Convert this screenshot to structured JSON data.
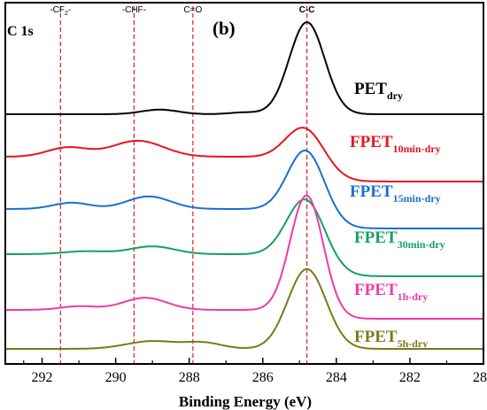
{
  "chart_data": {
    "type": "line",
    "title": "",
    "panel_label": "(b)",
    "region_label": "C 1s",
    "xlabel": "Binding Energy (eV)",
    "ylabel": "",
    "xlim": [
      293,
      280
    ],
    "x_reversed": true,
    "x_ticks": [
      292,
      290,
      288,
      286,
      284,
      282,
      280
    ],
    "grid": false,
    "legend": "labels placed next to each curve",
    "reference_lines": [
      {
        "label": "-CF2-",
        "main": "-CF",
        "sub": "2",
        "suffix": "-",
        "x": 291.5,
        "color": "#e02020"
      },
      {
        "label": "-CHF-",
        "main": "-CHF-",
        "sub": "",
        "suffix": "",
        "x": 289.5,
        "color": "#e02020"
      },
      {
        "label": "C=O",
        "main": "C=O",
        "sub": "",
        "suffix": "",
        "x": 287.9,
        "color": "#e02020"
      },
      {
        "label": "C-C",
        "main": "C-C",
        "sub": "",
        "suffix": "",
        "x": 284.8,
        "color": "#e02020"
      }
    ],
    "series": [
      {
        "name": "PETdry",
        "label_main": "PET",
        "label_sub": "dry",
        "color": "#000000",
        "baseline_left": 0.0,
        "baseline_right": 0.0,
        "main_peak": 1.0,
        "main_sigma": 0.48,
        "components": [
          {
            "x": 288.8,
            "a": 0.05,
            "s": 0.5
          },
          {
            "x": 286.5,
            "a": 0.02,
            "s": 0.4
          }
        ]
      },
      {
        "name": "FPET10min-dry",
        "label_main": "FPET",
        "label_sub": "10min-dry",
        "color": "#e8141e",
        "baseline_left": 0.0,
        "baseline_right": 0.12,
        "main_peak": 0.48,
        "main_sigma": 0.52,
        "components": [
          {
            "x": 291.3,
            "a": 0.11,
            "s": 0.55
          },
          {
            "x": 289.4,
            "a": 0.19,
            "s": 0.7
          }
        ]
      },
      {
        "name": "FPET15min-dry",
        "label_main": "FPET",
        "label_sub": "15min-dry",
        "color": "#1a6fd0",
        "baseline_left": 0.0,
        "baseline_right": 0.09,
        "main_peak": 0.65,
        "main_sigma": 0.5,
        "components": [
          {
            "x": 291.2,
            "a": 0.06,
            "s": 0.5
          },
          {
            "x": 289.1,
            "a": 0.12,
            "s": 0.6
          }
        ]
      },
      {
        "name": "FPET30min-dry",
        "label_main": "FPET",
        "label_sub": "30min-dry",
        "color": "#14a060",
        "baseline_left": 0.0,
        "baseline_right": 0.11,
        "main_peak": 0.67,
        "main_sigma": 0.52,
        "components": [
          {
            "x": 290.8,
            "a": 0.03,
            "s": 0.6
          },
          {
            "x": 289.0,
            "a": 0.08,
            "s": 0.6
          }
        ]
      },
      {
        "name": "FPET1h-dry",
        "label_main": "FPET",
        "label_sub": "1h-dry",
        "color": "#f03aa8",
        "baseline_left": 0.0,
        "baseline_right": 0.06,
        "main_peak": 0.98,
        "main_sigma": 0.45,
        "components": [
          {
            "x": 291.0,
            "a": 0.03,
            "s": 0.5
          },
          {
            "x": 289.2,
            "a": 0.1,
            "s": 0.6
          }
        ]
      },
      {
        "name": "FPET5h-dry",
        "label_main": "FPET",
        "label_sub": "5h-dry",
        "color": "#7a7a18",
        "baseline_left": 0.0,
        "baseline_right": 0.0,
        "main_peak": 0.82,
        "main_sigma": 0.52,
        "components": [
          {
            "x": 289.0,
            "a": 0.08,
            "s": 0.7
          },
          {
            "x": 287.6,
            "a": 0.06,
            "s": 0.5
          }
        ]
      }
    ]
  }
}
